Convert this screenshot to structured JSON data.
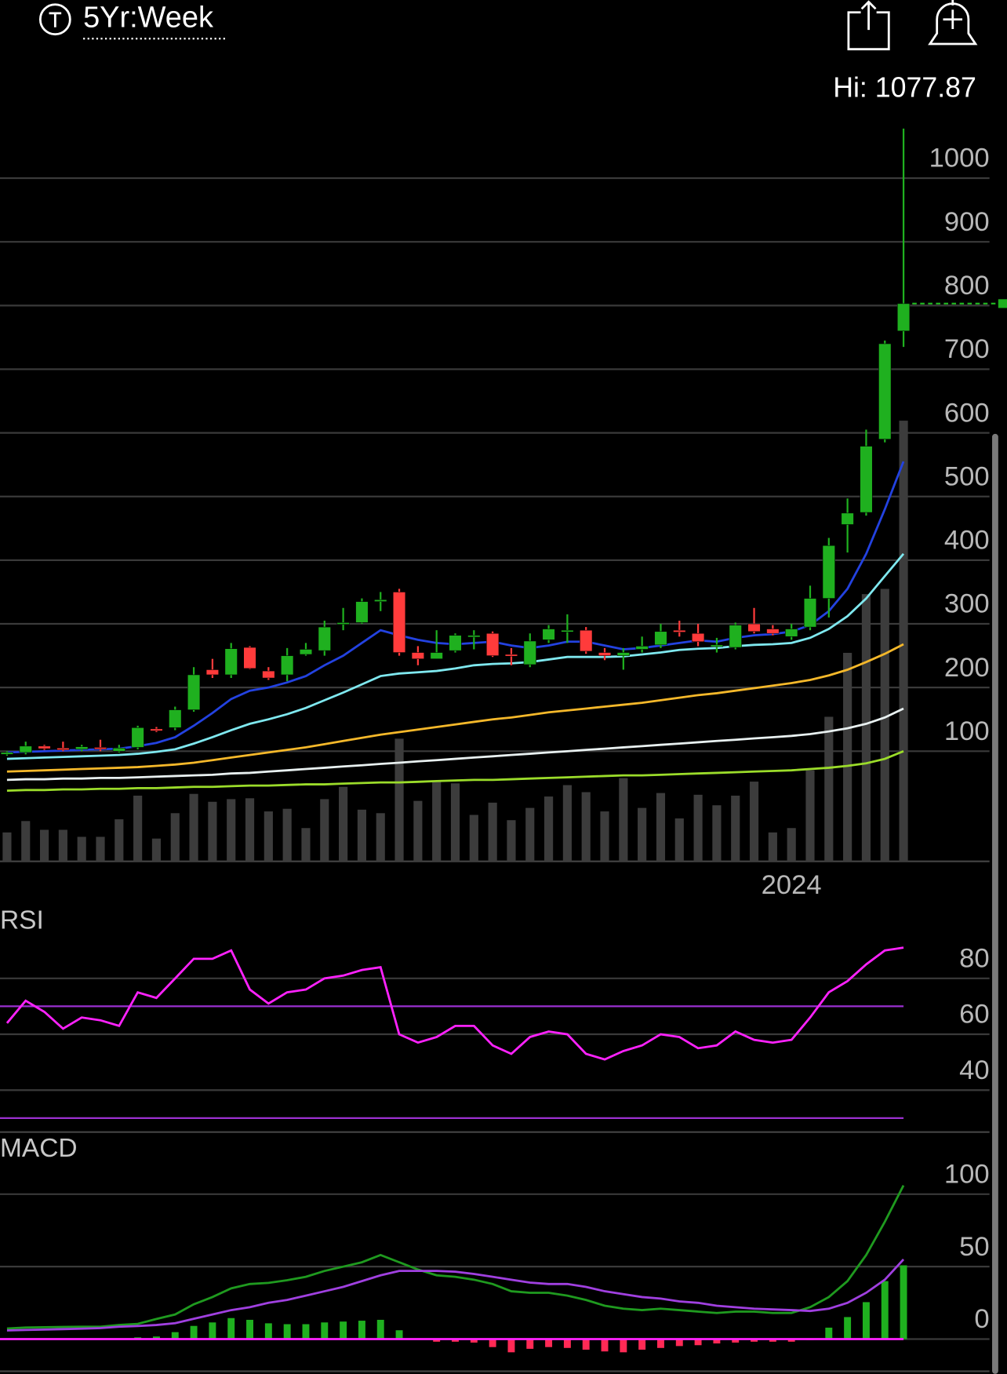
{
  "header": {
    "period": "5Yr:Week",
    "hi_label": "Hi: 1077.87"
  },
  "chart_data": [
    {
      "type": "candlestick",
      "categories": [
        null,
        null,
        null,
        null,
        null,
        null,
        null,
        null,
        null,
        null,
        null,
        null,
        null,
        null,
        null,
        null,
        null,
        null,
        null,
        null,
        null,
        null,
        null,
        null,
        null,
        null,
        null,
        null,
        null,
        null,
        null,
        null,
        null,
        null,
        null,
        null,
        null,
        null,
        null,
        null,
        null,
        null,
        "2024",
        null,
        null,
        null,
        null,
        null,
        null
      ],
      "open": [
        95,
        98,
        108,
        105,
        103,
        106,
        100,
        106,
        135,
        137,
        165,
        228,
        220,
        263,
        226,
        220,
        252,
        258,
        300,
        302,
        335,
        350,
        255,
        245,
        258,
        280,
        285,
        252,
        236,
        275,
        288,
        290,
        255,
        250,
        260,
        267,
        290,
        285,
        265,
        263,
        300,
        292,
        280,
        295,
        340,
        456,
        475,
        590,
        760
      ],
      "high": [
        100,
        115,
        110,
        115,
        110,
        118,
        110,
        140,
        138,
        170,
        232,
        245,
        270,
        265,
        232,
        262,
        270,
        305,
        325,
        340,
        350,
        355,
        265,
        290,
        285,
        290,
        288,
        262,
        285,
        298,
        315,
        295,
        262,
        262,
        280,
        300,
        305,
        300,
        278,
        302,
        325,
        298,
        300,
        360,
        435,
        497,
        605,
        745,
        1077.87
      ],
      "low": [
        93,
        95,
        102,
        100,
        100,
        100,
        98,
        103,
        130,
        133,
        162,
        215,
        215,
        229,
        212,
        210,
        250,
        250,
        290,
        300,
        320,
        250,
        235,
        245,
        255,
        260,
        248,
        235,
        232,
        270,
        270,
        253,
        243,
        228,
        255,
        262,
        280,
        265,
        255,
        260,
        285,
        282,
        275,
        290,
        310,
        412,
        470,
        585,
        735
      ],
      "close": [
        98,
        108,
        104,
        102,
        107,
        104,
        105,
        137,
        132,
        165,
        220,
        220,
        261,
        230,
        215,
        250,
        260,
        295,
        302,
        335,
        338,
        255,
        245,
        255,
        282,
        282,
        250,
        250,
        273,
        292,
        290,
        257,
        250,
        255,
        265,
        288,
        287,
        272,
        267,
        298,
        288,
        285,
        292,
        340,
        423,
        474,
        579,
        740,
        803
      ],
      "up_color": "#1fb01f",
      "down_color": "#ff3b3b",
      "lines": [
        {
          "color": "#9bdc2a",
          "values": [
            38,
            39,
            39,
            40,
            40,
            41,
            41,
            42,
            42,
            43,
            44,
            44,
            45,
            46,
            46,
            47,
            48,
            48,
            49,
            50,
            51,
            51,
            52,
            53,
            54,
            55,
            55,
            56,
            57,
            58,
            59,
            60,
            61,
            62,
            62,
            63,
            64,
            65,
            66,
            67,
            68,
            69,
            70,
            72,
            74,
            77,
            81,
            88,
            100
          ]
        },
        {
          "color": "#e8f0f0",
          "values": [
            55,
            56,
            56,
            57,
            57,
            58,
            58,
            59,
            60,
            61,
            62,
            63,
            65,
            66,
            68,
            70,
            72,
            74,
            76,
            78,
            80,
            82,
            84,
            86,
            88,
            90,
            92,
            94,
            96,
            98,
            100,
            102,
            104,
            106,
            108,
            110,
            112,
            114,
            116,
            118,
            120,
            122,
            124,
            127,
            131,
            136,
            143,
            153,
            167
          ]
        },
        {
          "color": "#f5b82a",
          "values": [
            68,
            69,
            70,
            71,
            72,
            73,
            74,
            75,
            77,
            79,
            82,
            86,
            90,
            94,
            98,
            102,
            106,
            111,
            116,
            121,
            126,
            130,
            134,
            138,
            142,
            146,
            150,
            153,
            157,
            161,
            164,
            167,
            170,
            173,
            176,
            180,
            184,
            188,
            191,
            195,
            199,
            203,
            207,
            212,
            219,
            228,
            240,
            253,
            268
          ]
        },
        {
          "color": "#7fe8ef",
          "values": [
            88,
            89,
            90,
            91,
            92,
            93,
            94,
            96,
            99,
            103,
            112,
            122,
            133,
            143,
            150,
            158,
            168,
            180,
            192,
            205,
            218,
            222,
            224,
            226,
            230,
            235,
            237,
            238,
            240,
            244,
            248,
            248,
            248,
            249,
            252,
            255,
            259,
            261,
            262,
            265,
            267,
            268,
            270,
            278,
            292,
            312,
            340,
            375,
            410
          ]
        },
        {
          "color": "#2342e0",
          "values": [
            98,
            99,
            100,
            101,
            102,
            103,
            104,
            108,
            113,
            122,
            140,
            160,
            182,
            195,
            200,
            208,
            218,
            235,
            250,
            270,
            290,
            282,
            275,
            270,
            268,
            270,
            272,
            266,
            262,
            266,
            272,
            272,
            266,
            260,
            262,
            266,
            270,
            274,
            272,
            278,
            282,
            284,
            288,
            298,
            320,
            355,
            410,
            480,
            555
          ]
        }
      ],
      "volume": {
        "color": "#3c3c3c",
        "axis": "y2",
        "values": [
          33,
          46,
          36,
          36,
          28,
          28,
          48,
          75,
          26,
          55,
          77,
          68,
          71,
          72,
          57,
          60,
          38,
          71,
          85,
          59,
          55,
          140,
          69,
          91,
          89,
          53,
          67,
          47,
          61,
          74,
          87,
          79,
          57,
          95,
          61,
          78,
          49,
          76,
          64,
          75,
          91,
          33,
          38,
          104,
          165,
          238,
          305,
          311,
          503
        ]
      },
      "ylim": [
        -73,
        1087
      ],
      "yticks": [
        100,
        200,
        300,
        400,
        500,
        600,
        700,
        800,
        900,
        1000
      ],
      "y2lim": [
        0,
        843
      ],
      "grid": true
    },
    {
      "type": "line",
      "title": "RSI",
      "series": [
        {
          "color": "#ff22ff",
          "values": [
            64,
            72,
            68,
            62,
            66,
            65,
            63,
            75,
            73,
            80,
            87,
            87,
            90,
            76,
            71,
            75,
            76,
            80,
            81,
            83,
            84,
            60,
            57,
            59,
            63,
            63,
            56,
            53,
            59,
            61,
            60,
            53,
            51,
            54,
            56,
            60,
            59,
            55,
            56,
            61,
            58,
            57,
            58,
            66,
            75,
            79,
            85,
            90,
            91
          ]
        }
      ],
      "bands": [
        30,
        70
      ],
      "band_color": "#9b30d0",
      "ylim": [
        25,
        104
      ],
      "yticks": [
        40,
        60,
        80
      ],
      "grid": true
    },
    {
      "type": "macd",
      "title": "MACD",
      "series": [
        {
          "color": "#1f9a1f",
          "values": [
            7.3,
            8.0,
            8.2,
            8.4,
            8.5,
            8.5,
            9.7,
            10.5,
            13.9,
            17,
            24,
            29,
            35,
            38,
            38.8,
            40.6,
            43,
            47,
            50,
            53,
            58,
            53,
            48,
            44,
            43,
            41,
            38,
            33,
            32,
            32,
            30,
            27,
            23,
            21,
            20,
            21,
            20,
            19,
            18,
            19,
            19,
            18,
            18,
            22,
            29,
            40,
            58,
            81,
            106
          ]
        },
        {
          "color": "#a040e0",
          "values": [
            6,
            6.3,
            6.6,
            6.9,
            7.2,
            7.6,
            8.5,
            9,
            9.7,
            11,
            14,
            17,
            20,
            22,
            25,
            27,
            30,
            33,
            36,
            40,
            44,
            47,
            47,
            47,
            46.5,
            45,
            43,
            41,
            39,
            38,
            38,
            36,
            33,
            31,
            29,
            28,
            26,
            25,
            23,
            22,
            21,
            20.5,
            20,
            19.4,
            21,
            25,
            32,
            41,
            55
          ]
        }
      ],
      "histogram": {
        "up_color": "#1fb01f",
        "down_color": "#ff2a55",
        "values": [
          0.5,
          0.5,
          0.5,
          0.5,
          0.5,
          0.5,
          0.5,
          1.2,
          1.8,
          4.8,
          9.1,
          11.5,
          14.5,
          13.3,
          10.9,
          10.3,
          10.3,
          11.5,
          12.1,
          12.7,
          13.3,
          6.1,
          0,
          -1.8,
          -1.8,
          -2.4,
          -5.5,
          -9.1,
          -6.7,
          -5.5,
          -6.1,
          -7.3,
          -8.5,
          -9.1,
          -7.3,
          -6.1,
          -4.8,
          -4.2,
          -3.0,
          -2.4,
          -1.8,
          -1.8,
          -1.8,
          -0.6,
          7.9,
          15.2,
          25.5,
          40,
          50.9
        ]
      },
      "zero_color": "#ff22ff",
      "ylim": [
        -24,
        138
      ],
      "yticks": [
        0,
        50,
        100
      ],
      "grid": true
    }
  ]
}
